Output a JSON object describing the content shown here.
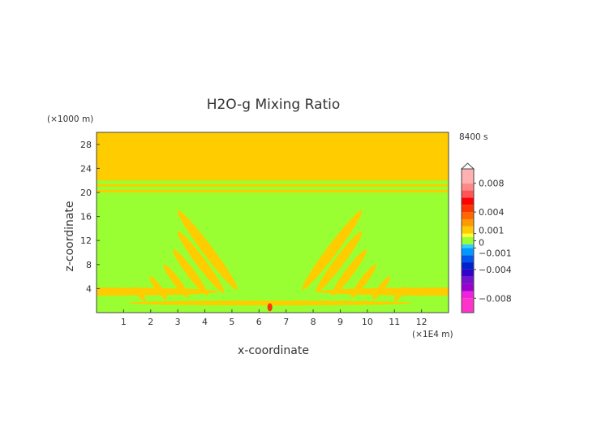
{
  "chart_data": {
    "type": "heatmap",
    "title": "H2O-g Mixing Ratio",
    "xlabel": "x-coordinate",
    "ylabel": "z-coordinate",
    "x_unit": "(×1E4 m)",
    "y_unit": "(×1000 m)",
    "time_label": "8400 s",
    "xlim": [
      0,
      13
    ],
    "ylim": [
      0,
      30
    ],
    "x_ticks": [
      1,
      2,
      3,
      4,
      5,
      6,
      7,
      8,
      9,
      10,
      11,
      12
    ],
    "y_ticks": [
      4,
      8,
      12,
      16,
      20,
      24,
      28
    ],
    "grid": false,
    "field": {
      "background_level": 0,
      "upper_layer_z": [
        22,
        30
      ],
      "upper_layer_level": 0.001,
      "bands_z": [
        20.2,
        21.2
      ],
      "surface_anomaly_x": 6.4,
      "surface_anomaly_level": 0.004
    },
    "colorbar": {
      "placement": "right",
      "extend_max": true,
      "tick_labels": [
        "0.008",
        "0.004",
        "0.001",
        "0",
        "-0.001",
        "-0.004",
        "-0.008"
      ],
      "tick_values": [
        0.008,
        0.004,
        0.001,
        0,
        -0.001,
        -0.004,
        -0.008
      ],
      "levels": [
        -0.01,
        -0.008,
        -0.007,
        -0.006,
        -0.005,
        -0.004,
        -0.003,
        -0.002,
        -0.001,
        -0.0005,
        0.0005,
        0.001,
        0.002,
        0.003,
        0.004,
        0.005,
        0.006,
        0.007,
        0.008,
        0.01
      ],
      "colors": [
        "#ff33cc",
        "#ee22dd",
        "#9900cc",
        "#7711cc",
        "#3300cc",
        "#0022cc",
        "#0055ee",
        "#0099ff",
        "#33ccff",
        "#99ff33",
        "#ffff33",
        "#ffcc00",
        "#ff9900",
        "#ff6600",
        "#ff3300",
        "#ff0000",
        "#ff5555",
        "#ff8888",
        "#ffb0b0"
      ],
      "colors_meaning": "fill colours from lowest level to highest"
    }
  }
}
